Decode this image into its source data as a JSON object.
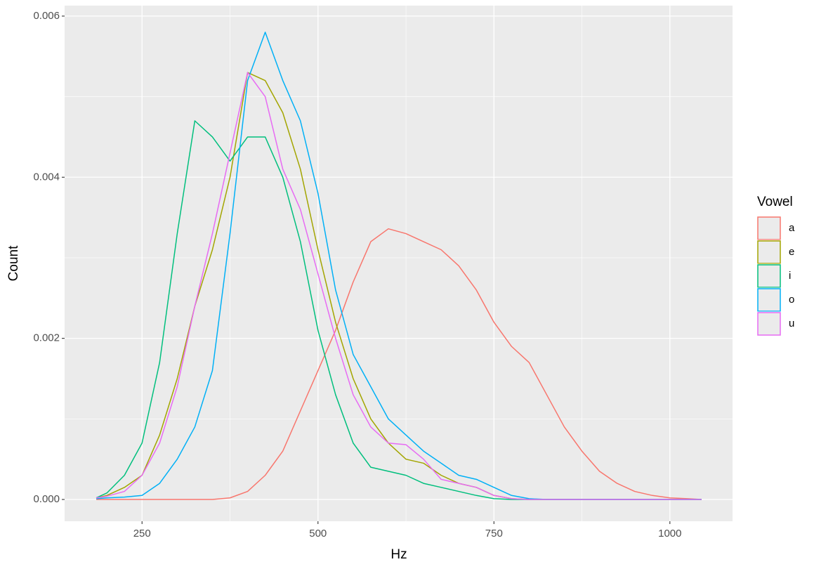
{
  "chart_data": {
    "type": "line",
    "xlabel": "Hz",
    "ylabel": "Count",
    "legend_title": "Vowel",
    "legend": "right",
    "grid": true,
    "x": [
      185,
      200,
      225,
      250,
      275,
      300,
      325,
      350,
      375,
      400,
      425,
      450,
      475,
      500,
      525,
      550,
      575,
      600,
      625,
      650,
      675,
      700,
      725,
      750,
      775,
      800,
      825,
      850,
      875,
      900,
      925,
      950,
      975,
      1000,
      1025,
      1045
    ],
    "series": [
      {
        "name": "a",
        "color": "#F8766D",
        "values": [
          0,
          0,
          0,
          0,
          0,
          0,
          0,
          0,
          2e-05,
          0.0001,
          0.0003,
          0.0006,
          0.0011,
          0.0016,
          0.0021,
          0.0027,
          0.0032,
          0.00336,
          0.0033,
          0.0032,
          0.0031,
          0.0029,
          0.0026,
          0.0022,
          0.0019,
          0.0017,
          0.0013,
          0.0009,
          0.0006,
          0.00035,
          0.0002,
          0.0001,
          5e-05,
          2e-05,
          1e-05,
          0
        ]
      },
      {
        "name": "e",
        "color": "#A3A500",
        "values": [
          2e-05,
          5e-05,
          0.00015,
          0.0003,
          0.0008,
          0.0015,
          0.0024,
          0.0031,
          0.004,
          0.0053,
          0.0052,
          0.0048,
          0.0041,
          0.0031,
          0.0022,
          0.0015,
          0.001,
          0.0007,
          0.0005,
          0.00045,
          0.0003,
          0.0002,
          0.00015,
          5e-05,
          1e-05,
          0,
          0,
          0,
          0,
          0,
          0,
          0,
          0,
          0,
          0,
          0
        ]
      },
      {
        "name": "i",
        "color": "#00BF7D",
        "values": [
          2e-05,
          8e-05,
          0.0003,
          0.0007,
          0.0017,
          0.0033,
          0.0047,
          0.0045,
          0.0042,
          0.0045,
          0.0045,
          0.004,
          0.0032,
          0.0021,
          0.0013,
          0.0007,
          0.0004,
          0.00035,
          0.0003,
          0.0002,
          0.00015,
          0.0001,
          5e-05,
          1e-05,
          0,
          0,
          0,
          0,
          0,
          0,
          0,
          0,
          0,
          0,
          0,
          0
        ]
      },
      {
        "name": "o",
        "color": "#00B0F6",
        "values": [
          1e-05,
          2e-05,
          3e-05,
          5e-05,
          0.0002,
          0.0005,
          0.0009,
          0.0016,
          0.0033,
          0.0052,
          0.0058,
          0.0052,
          0.0047,
          0.0038,
          0.0026,
          0.0018,
          0.0014,
          0.001,
          0.0008,
          0.0006,
          0.00045,
          0.0003,
          0.00025,
          0.00015,
          5e-05,
          1e-05,
          0,
          0,
          0,
          0,
          0,
          0,
          0,
          0,
          0,
          0
        ]
      },
      {
        "name": "u",
        "color": "#E76BF3",
        "values": [
          2e-05,
          4e-05,
          0.0001,
          0.0003,
          0.0007,
          0.0014,
          0.0024,
          0.0033,
          0.0043,
          0.0053,
          0.005,
          0.0041,
          0.0036,
          0.0028,
          0.002,
          0.0013,
          0.0009,
          0.0007,
          0.00068,
          0.0005,
          0.00025,
          0.0002,
          0.00015,
          5e-05,
          1e-05,
          0,
          0,
          0,
          0,
          0,
          0,
          0,
          0,
          0,
          0,
          0
        ]
      }
    ],
    "xlim": [
      140,
      1089
    ],
    "xticks": [
      250,
      500,
      750,
      1000
    ],
    "ylim": [
      -0.00027,
      0.00613
    ],
    "yticks": [
      {
        "value": 0,
        "label": "0.000"
      },
      0.002,
      0.004,
      0.006
    ]
  }
}
